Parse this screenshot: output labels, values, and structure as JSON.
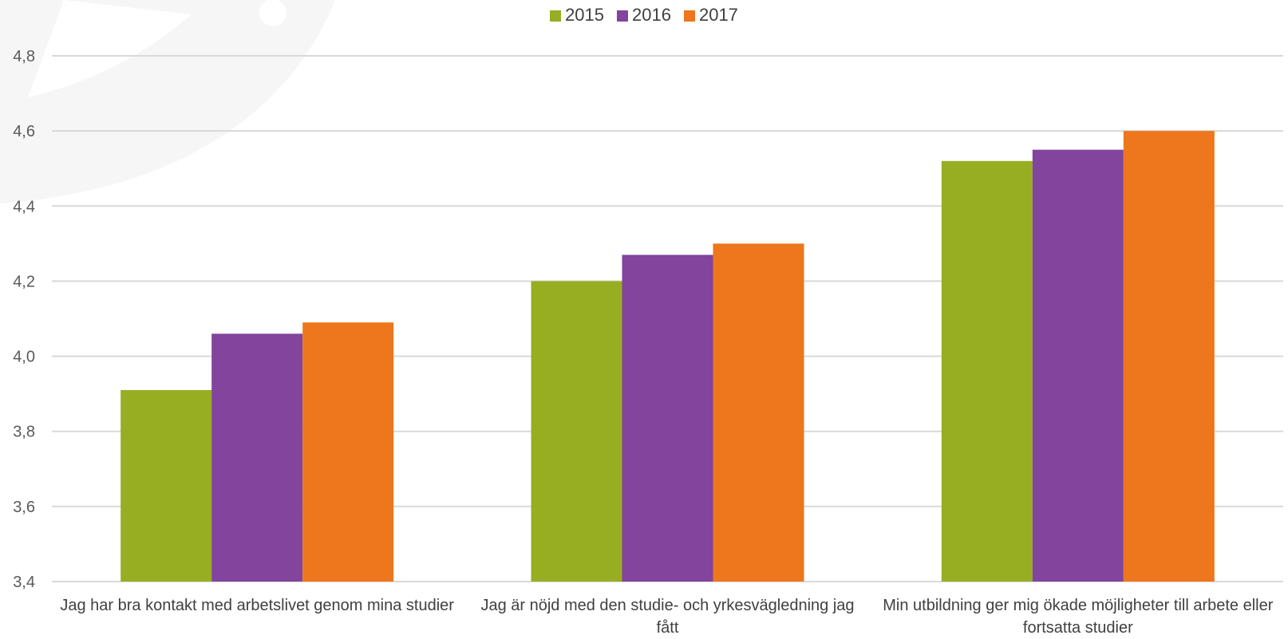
{
  "chart_data": {
    "type": "bar",
    "categories": [
      "Jag har bra kontakt med arbetslivet genom mina studier",
      "Jag är nöjd med den studie- och yrkesvägledning jag fått",
      "Min utbildning ger mig ökade möjligheter till arbete eller fortsatta studier"
    ],
    "series": [
      {
        "name": "2015",
        "color": "#97AE22",
        "values": [
          3.91,
          4.2,
          4.52
        ]
      },
      {
        "name": "2016",
        "color": "#82449C",
        "values": [
          4.06,
          4.27,
          4.55
        ]
      },
      {
        "name": "2017",
        "color": "#EE761C",
        "values": [
          4.09,
          4.3,
          4.6
        ]
      }
    ],
    "ylim": [
      3.4,
      4.8
    ],
    "yticks": [
      "3,4",
      "3,6",
      "3,8",
      "4,0",
      "4,2",
      "4,4",
      "4,6",
      "4,8"
    ],
    "grid": true,
    "legend_position": "top-center"
  }
}
